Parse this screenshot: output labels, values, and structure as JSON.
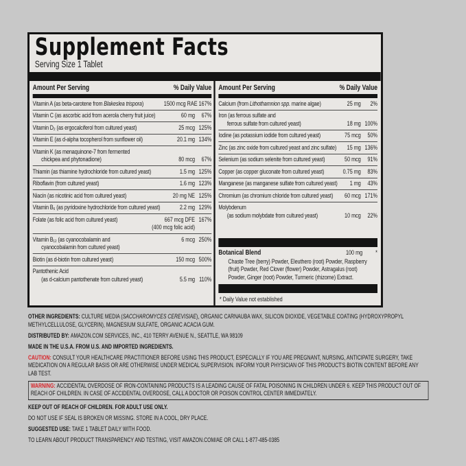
{
  "colors": {
    "page_bg": "#c8c8c8",
    "panel_bg": "#e9e7e4",
    "bar": "#141414",
    "red_accent": "#d92328"
  },
  "panel": {
    "title": "Supplement Facts",
    "serving_size": "Serving Size 1 Tablet",
    "col_header": {
      "amount": "Amount Per Serving",
      "dv": "% Daily Value"
    },
    "footnote": "* Daily Value not established"
  },
  "left_rows": [
    {
      "name": [
        {
          "t": "Vitamin A (as beta-carotene from "
        },
        {
          "t": "Blakeslea trispora",
          "i": true
        },
        {
          "t": ")"
        }
      ],
      "amount": "1500 mcg RAE",
      "dv": "167%",
      "values_line": 1
    },
    {
      "name": "Vitamin C (as ascorbic acid from acerola cherry fruit juice)",
      "amount": "60 mg",
      "dv": "67%",
      "values_line": 1
    },
    {
      "name": "Vitamin D₂ (as ergocalciferol from cultured yeast)",
      "amount": "25 mcg",
      "dv": "125%",
      "values_line": 1
    },
    {
      "name": "Vitamin E (as d-alpha tocopherol from sunflower oil)",
      "amount": "20.1 mg",
      "dv": "134%",
      "values_line": 1
    },
    {
      "name": "Vitamin K (as menaquinone-7 from fermented",
      "name2": "chickpea and phytonadione)",
      "amount": "80 mcg",
      "dv": "67%",
      "values_line": 2
    },
    {
      "name": "Thiamin (as thiamine hydrochloride from cultured yeast)",
      "amount": "1.5 mg",
      "dv": "125%",
      "values_line": 1
    },
    {
      "name": "Riboflavin (from cultured yeast)",
      "amount": "1.6 mg",
      "dv": "123%",
      "values_line": 1
    },
    {
      "name": "Niacin (as nicotinic acid from cultured yeast)",
      "amount": "20 mg NE",
      "dv": "125%",
      "values_line": 1
    },
    {
      "name": "Vitamin B₆ (as pyridoxine hydrochloride from cultured yeast)",
      "amount": "2.2 mg",
      "dv": "129%",
      "values_line": 1
    },
    {
      "name": "Folate (as folic acid from cultured yeast)",
      "amount": "667 mcg DFE",
      "dv": "167%",
      "values_line": 1,
      "sub_amount": "(400 mcg folic acid)"
    },
    {
      "name": "Vitamin B₁₂ (as cyanocobalamin and",
      "name2": "cyanocobalamin from cultured yeast)",
      "amount": "6 mcg",
      "dv": "250%",
      "values_line": 1
    },
    {
      "name": "Biotin (as d-biotin from cultured yeast)",
      "amount": "150 mcg",
      "dv": "500%",
      "values_line": 1
    },
    {
      "name": "Pantothenic Acid",
      "name2": "(as d-calcium pantothenate from cultured yeast)",
      "amount": "5.5 mg",
      "dv": "110%",
      "values_line": 2
    }
  ],
  "right_rows": [
    {
      "name": [
        {
          "t": "Calcium (from "
        },
        {
          "t": "Lithothamnion spp.",
          "i": true
        },
        {
          "t": " marine algae)"
        }
      ],
      "amount": "25 mg",
      "dv": "2%",
      "values_line": 1
    },
    {
      "name": "Iron (as ferrous sulfate and",
      "name2": "ferrous sulfate from cultured yeast)",
      "amount": "18 mg",
      "dv": "100%",
      "values_line": 2
    },
    {
      "name": "Iodine (as potassium iodide from cultured yeast)",
      "amount": "75 mcg",
      "dv": "50%",
      "values_line": 1
    },
    {
      "name": "Zinc (as zinc oxide from cultured yeast and zinc sulfate)",
      "amount": "15 mg",
      "dv": "136%",
      "values_line": 1
    },
    {
      "name": "Selenium (as sodium selenite from cultured yeast)",
      "amount": "50 mcg",
      "dv": "91%",
      "values_line": 1
    },
    {
      "name": "Copper (as copper gluconate from cultured yeast)",
      "amount": "0.75 mg",
      "dv": "83%",
      "values_line": 1
    },
    {
      "name": "Manganese (as manganese sulfate from cultured yeast)",
      "amount": "1 mg",
      "dv": "43%",
      "values_line": 1
    },
    {
      "name": "Chromium (as chromium chloride from cultured yeast)",
      "amount": "60 mcg",
      "dv": "171%",
      "values_line": 1
    },
    {
      "name": "Molybdenum",
      "name2": "(as sodium molybdate from cultured yeast)",
      "amount": "10 mcg",
      "dv": "22%",
      "values_line": 2
    }
  ],
  "botanical": {
    "name": "Botanical Blend",
    "amount": "100 mg",
    "dv": "*",
    "description": "Chaste Tree (berry) Powder, Eleuthero (root) Powder, Raspberry (fruit) Powder, Red Clover (flower) Powder, Astragalus (root) Powder, Ginger (root) Powder, Turmeric (rhizome) Extract."
  },
  "footer_lines": [
    {
      "segs": [
        {
          "t": "OTHER INGREDIENTS: ",
          "b": true
        },
        {
          "t": "CULTURE MEDIA ("
        },
        {
          "t": "SACCHAROMYCES CEREVISIAE",
          "i": true
        },
        {
          "t": "), ORGANIC CARNAUBA WAX, SILICON DIOXIDE, VEGETABLE COATING (HYDROXYPROPYL METHYLCELLULOSE, GLYCERIN), MAGNESIUM SULFATE, ORGANIC ACACIA GUM."
        }
      ]
    },
    {
      "segs": [
        {
          "t": "DISTRIBUTED BY: ",
          "b": true
        },
        {
          "t": "AMAZON.COM SERVICES, INC., 410 TERRY AVENUE N., SEATTLE, WA 98109"
        }
      ]
    },
    {
      "segs": [
        {
          "t": "MADE IN THE U.S.A. FROM U.S. AND IMPORTED INGREDIENTS.",
          "b": true
        }
      ]
    },
    {
      "segs": [
        {
          "t": "CAUTION: ",
          "b": true,
          "r": true
        },
        {
          "t": "CONSULT YOUR HEALTHCARE PRACTITIONER BEFORE USING THIS PRODUCT, ESPECIALLY IF YOU ARE PREGNANT, NURSING, ANTICIPATE SURGERY, TAKE MEDICATION ON A REGULAR BASIS OR ARE OTHERWISE UNDER MEDICAL SUPERVISION. INFORM YOUR PHYSICIAN OF THIS PRODUCT'S BIOTIN CONTENT BEFORE ANY LAB TEST."
        }
      ]
    },
    {
      "boxed": true,
      "segs": [
        {
          "t": "WARNING: ",
          "b": true,
          "r": true
        },
        {
          "t": "ACCIDENTAL OVERDOSE OF IRON-CONTAINING PRODUCTS IS A LEADING CAUSE OF FATAL POISONING IN CHILDREN UNDER 6. KEEP THIS PRODUCT OUT OF REACH OF CHILDREN. IN CASE OF ACCIDENTAL OVERDOSE, CALL A DOCTOR OR POISON CONTROL CENTER IMMEDIATELY."
        }
      ]
    },
    {
      "segs": [
        {
          "t": "KEEP OUT OF REACH OF CHILDREN. FOR ADULT USE ONLY.",
          "b": true
        }
      ]
    },
    {
      "segs": [
        {
          "t": "DO NOT USE IF SEAL IS BROKEN OR MISSING. STORE IN A COOL, DRY PLACE."
        }
      ]
    },
    {
      "segs": [
        {
          "t": "SUGGESTED USE: ",
          "b": true
        },
        {
          "t": "TAKE 1 TABLET DAILY WITH FOOD."
        }
      ]
    },
    {
      "segs": [
        {
          "t": "TO LEARN ABOUT PRODUCT TRANSPARENCY AND TESTING, VISIT AMAZON.COM/AE OR CALL 1-877-485-0385"
        }
      ]
    }
  ]
}
